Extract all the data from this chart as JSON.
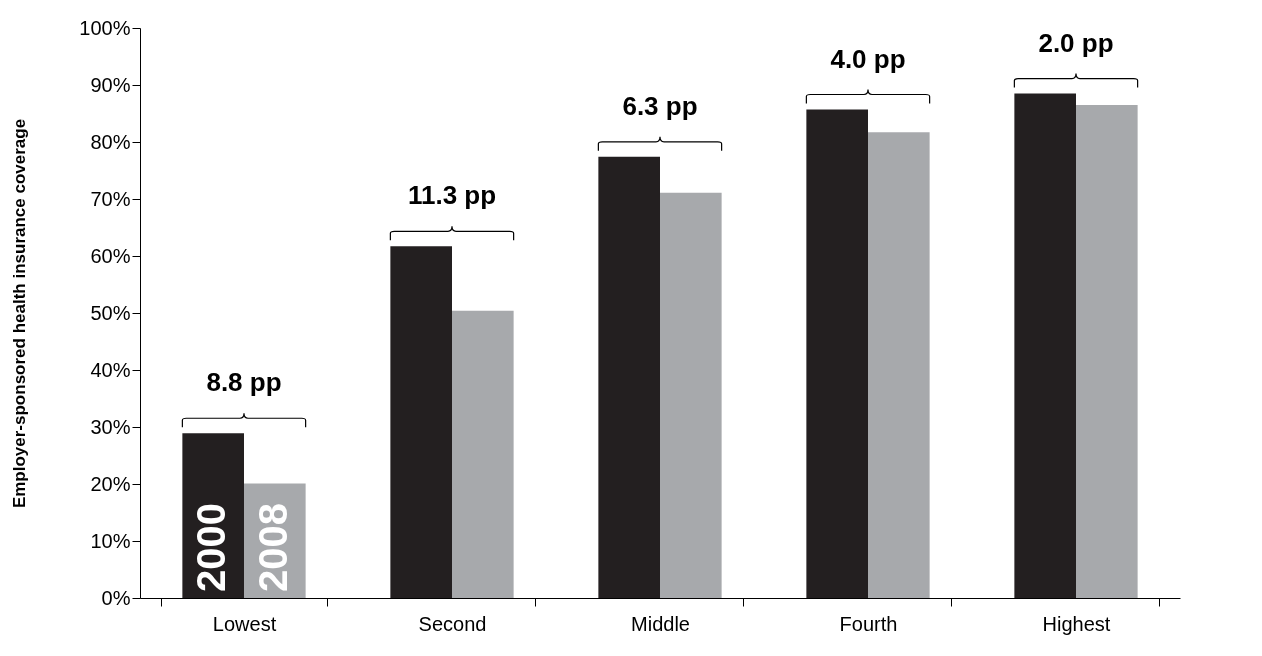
{
  "chart_data": {
    "type": "bar",
    "ylabel": "Employer-sponsored health insurance coverage",
    "categories": [
      "Lowest",
      "Second",
      "Middle",
      "Fourth",
      "Highest"
    ],
    "series": [
      {
        "name": "2000",
        "color": "#231f20",
        "values": [
          28.9,
          61.7,
          77.4,
          85.7,
          88.5
        ]
      },
      {
        "name": "2008",
        "color": "#a7a9ac",
        "values": [
          20.1,
          50.4,
          71.1,
          81.7,
          86.5
        ]
      }
    ],
    "ylim": [
      0,
      100
    ],
    "yticks": [
      {
        "value": 0,
        "label": "0%"
      },
      {
        "value": 10,
        "label": "10%"
      },
      {
        "value": 20,
        "label": "20%"
      },
      {
        "value": 30,
        "label": "30%"
      },
      {
        "value": 40,
        "label": "40%"
      },
      {
        "value": 50,
        "label": "50%"
      },
      {
        "value": 60,
        "label": "60%"
      },
      {
        "value": 70,
        "label": "70%"
      },
      {
        "value": 80,
        "label": "80%"
      },
      {
        "value": 90,
        "label": "90%"
      },
      {
        "value": 100,
        "label": "100%"
      }
    ],
    "annotations": [
      {
        "text": "8.8 pp",
        "x": "Lowest",
        "y": 28.9
      },
      {
        "text": "11.3 pp",
        "x": "Second",
        "y": 61.7
      },
      {
        "text": "6.3 pp",
        "x": "Middle",
        "y": 77.4
      },
      {
        "text": "4.0 pp",
        "x": "Fourth",
        "y": 85.7
      },
      {
        "text": "2.0 pp",
        "x": "Highest",
        "y": 88.5
      }
    ],
    "grid": false,
    "legend": false
  }
}
